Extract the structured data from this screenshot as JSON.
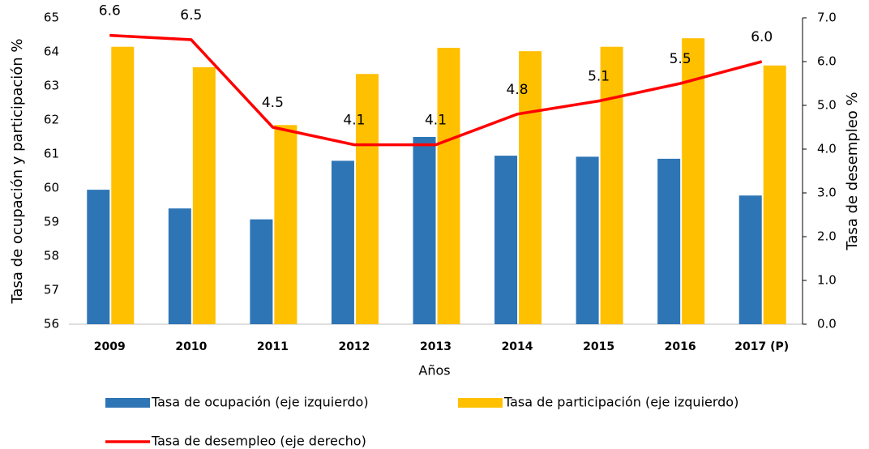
{
  "chart_data": {
    "type": "bar",
    "categories": [
      "2009",
      "2010",
      "2011",
      "2012",
      "2013",
      "2014",
      "2015",
      "2016",
      "2017 (P)"
    ],
    "x_label": "Años",
    "y_label": "Tasa de ocupación y participación %",
    "y2_label": "Tasa de desempleo %",
    "series": [
      {
        "name": "Tasa de ocupación (eje izquierdo)",
        "color": "#2e75b6",
        "type": "bar",
        "values": [
          59.95,
          59.4,
          59.08,
          60.8,
          61.5,
          60.95,
          60.92,
          60.86,
          59.78
        ]
      },
      {
        "name": "Tasa de participación (eje izquierdo)",
        "color": "#ffc000",
        "type": "bar",
        "values": [
          64.15,
          63.55,
          61.85,
          63.35,
          64.12,
          64.02,
          64.15,
          64.4,
          63.6
        ]
      },
      {
        "name": "Tasa de desempleo (eje derecho)",
        "color": "#ff0000",
        "type": "line",
        "axis": "y2",
        "values": [
          6.6,
          6.5,
          4.5,
          4.1,
          4.1,
          4.8,
          5.1,
          5.5,
          6.0
        ],
        "value_labels": [
          "6.6",
          "6.5",
          "4.5",
          "4.1",
          "4.1",
          "4.8",
          "5.1",
          "5.5",
          "6.0"
        ]
      }
    ],
    "ylim": [
      56,
      65
    ],
    "yticks": [
      56,
      57,
      58,
      59,
      60,
      61,
      62,
      63,
      64,
      65
    ],
    "y2lim": [
      0,
      7
    ],
    "y2ticks": [
      {
        "value": 0,
        "label": "0.0"
      },
      {
        "value": 1,
        "label": "1.0"
      },
      {
        "value": 2,
        "label": "2.0"
      },
      {
        "value": 3,
        "label": "3.0"
      },
      {
        "value": 4,
        "label": "4.0"
      },
      {
        "value": 5,
        "label": "5.0"
      },
      {
        "value": 6,
        "label": "6.0"
      },
      {
        "value": 7,
        "label": "7.0"
      }
    ],
    "grid": false,
    "legend": "bottom"
  }
}
